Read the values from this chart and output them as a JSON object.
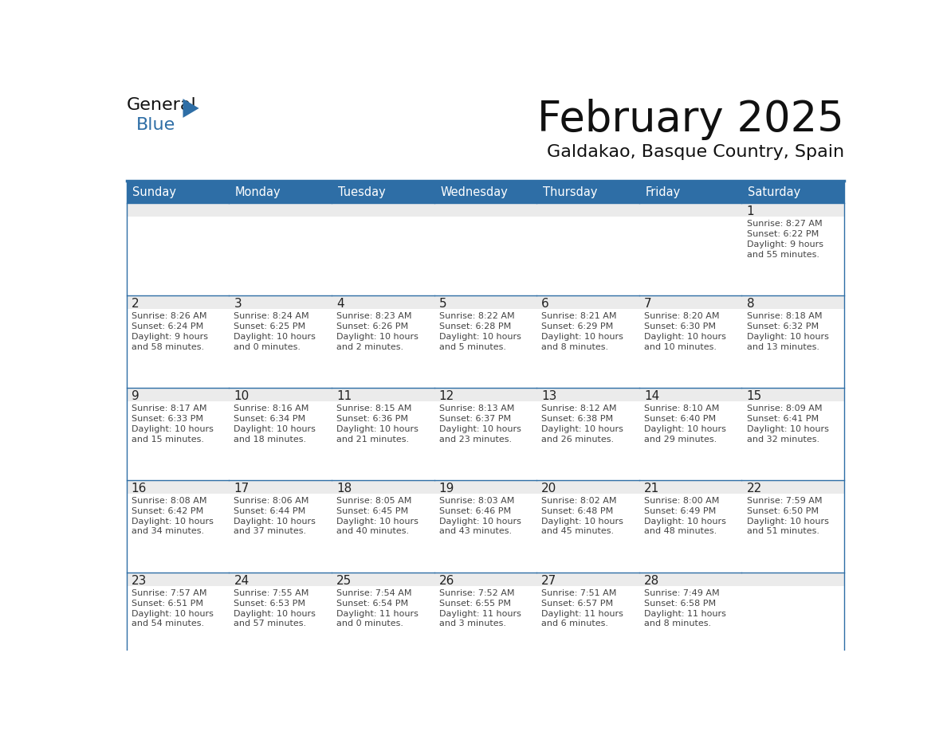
{
  "title": "February 2025",
  "subtitle": "Galdakao, Basque Country, Spain",
  "header_bg": "#2E6EA6",
  "header_text": "#FFFFFF",
  "cell_bg": "#FFFFFF",
  "cell_top_bg": "#F0F0F0",
  "line_color": "#2E6EA6",
  "text_color": "#333333",
  "day_num_color": "#333333",
  "info_text_color": "#444444",
  "days_of_week": [
    "Sunday",
    "Monday",
    "Tuesday",
    "Wednesday",
    "Thursday",
    "Friday",
    "Saturday"
  ],
  "calendar_data": [
    [
      null,
      null,
      null,
      null,
      null,
      null,
      {
        "day": 1,
        "sunrise": "8:27 AM",
        "sunset": "6:22 PM",
        "daylight": "9 hours",
        "daylight2": "and 55 minutes."
      }
    ],
    [
      {
        "day": 2,
        "sunrise": "8:26 AM",
        "sunset": "6:24 PM",
        "daylight": "9 hours",
        "daylight2": "and 58 minutes."
      },
      {
        "day": 3,
        "sunrise": "8:24 AM",
        "sunset": "6:25 PM",
        "daylight": "10 hours",
        "daylight2": "and 0 minutes."
      },
      {
        "day": 4,
        "sunrise": "8:23 AM",
        "sunset": "6:26 PM",
        "daylight": "10 hours",
        "daylight2": "and 2 minutes."
      },
      {
        "day": 5,
        "sunrise": "8:22 AM",
        "sunset": "6:28 PM",
        "daylight": "10 hours",
        "daylight2": "and 5 minutes."
      },
      {
        "day": 6,
        "sunrise": "8:21 AM",
        "sunset": "6:29 PM",
        "daylight": "10 hours",
        "daylight2": "and 8 minutes."
      },
      {
        "day": 7,
        "sunrise": "8:20 AM",
        "sunset": "6:30 PM",
        "daylight": "10 hours",
        "daylight2": "and 10 minutes."
      },
      {
        "day": 8,
        "sunrise": "8:18 AM",
        "sunset": "6:32 PM",
        "daylight": "10 hours",
        "daylight2": "and 13 minutes."
      }
    ],
    [
      {
        "day": 9,
        "sunrise": "8:17 AM",
        "sunset": "6:33 PM",
        "daylight": "10 hours",
        "daylight2": "and 15 minutes."
      },
      {
        "day": 10,
        "sunrise": "8:16 AM",
        "sunset": "6:34 PM",
        "daylight": "10 hours",
        "daylight2": "and 18 minutes."
      },
      {
        "day": 11,
        "sunrise": "8:15 AM",
        "sunset": "6:36 PM",
        "daylight": "10 hours",
        "daylight2": "and 21 minutes."
      },
      {
        "day": 12,
        "sunrise": "8:13 AM",
        "sunset": "6:37 PM",
        "daylight": "10 hours",
        "daylight2": "and 23 minutes."
      },
      {
        "day": 13,
        "sunrise": "8:12 AM",
        "sunset": "6:38 PM",
        "daylight": "10 hours",
        "daylight2": "and 26 minutes."
      },
      {
        "day": 14,
        "sunrise": "8:10 AM",
        "sunset": "6:40 PM",
        "daylight": "10 hours",
        "daylight2": "and 29 minutes."
      },
      {
        "day": 15,
        "sunrise": "8:09 AM",
        "sunset": "6:41 PM",
        "daylight": "10 hours",
        "daylight2": "and 32 minutes."
      }
    ],
    [
      {
        "day": 16,
        "sunrise": "8:08 AM",
        "sunset": "6:42 PM",
        "daylight": "10 hours",
        "daylight2": "and 34 minutes."
      },
      {
        "day": 17,
        "sunrise": "8:06 AM",
        "sunset": "6:44 PM",
        "daylight": "10 hours",
        "daylight2": "and 37 minutes."
      },
      {
        "day": 18,
        "sunrise": "8:05 AM",
        "sunset": "6:45 PM",
        "daylight": "10 hours",
        "daylight2": "and 40 minutes."
      },
      {
        "day": 19,
        "sunrise": "8:03 AM",
        "sunset": "6:46 PM",
        "daylight": "10 hours",
        "daylight2": "and 43 minutes."
      },
      {
        "day": 20,
        "sunrise": "8:02 AM",
        "sunset": "6:48 PM",
        "daylight": "10 hours",
        "daylight2": "and 45 minutes."
      },
      {
        "day": 21,
        "sunrise": "8:00 AM",
        "sunset": "6:49 PM",
        "daylight": "10 hours",
        "daylight2": "and 48 minutes."
      },
      {
        "day": 22,
        "sunrise": "7:59 AM",
        "sunset": "6:50 PM",
        "daylight": "10 hours",
        "daylight2": "and 51 minutes."
      }
    ],
    [
      {
        "day": 23,
        "sunrise": "7:57 AM",
        "sunset": "6:51 PM",
        "daylight": "10 hours",
        "daylight2": "and 54 minutes."
      },
      {
        "day": 24,
        "sunrise": "7:55 AM",
        "sunset": "6:53 PM",
        "daylight": "10 hours",
        "daylight2": "and 57 minutes."
      },
      {
        "day": 25,
        "sunrise": "7:54 AM",
        "sunset": "6:54 PM",
        "daylight": "11 hours",
        "daylight2": "and 0 minutes."
      },
      {
        "day": 26,
        "sunrise": "7:52 AM",
        "sunset": "6:55 PM",
        "daylight": "11 hours",
        "daylight2": "and 3 minutes."
      },
      {
        "day": 27,
        "sunrise": "7:51 AM",
        "sunset": "6:57 PM",
        "daylight": "11 hours",
        "daylight2": "and 6 minutes."
      },
      {
        "day": 28,
        "sunrise": "7:49 AM",
        "sunset": "6:58 PM",
        "daylight": "11 hours",
        "daylight2": "and 8 minutes."
      },
      null
    ]
  ]
}
